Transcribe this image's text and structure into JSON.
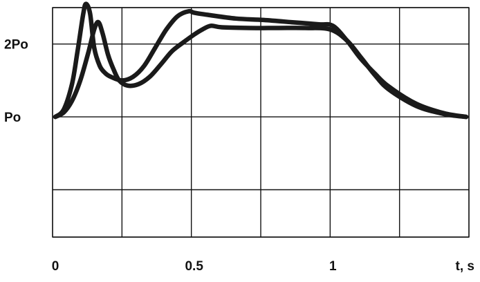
{
  "chart_data": {
    "type": "line",
    "title": "",
    "xlabel": "t, s",
    "ylabel": "",
    "xlim": [
      -0.01,
      1.49
    ],
    "ylim": [
      -0.65,
      2.5
    ],
    "grid": true,
    "x_ticks": [
      {
        "value": 0,
        "label": "0"
      },
      {
        "value": 0.5,
        "label": "0.5"
      },
      {
        "value": 1,
        "label": "1"
      }
    ],
    "y_ticks": [
      {
        "value": 1,
        "label": "Po"
      },
      {
        "value": 2,
        "label": "2Po"
      }
    ],
    "grid_x": [
      -0.01,
      0.24,
      0.49,
      0.74,
      0.99,
      1.24,
      1.49
    ],
    "grid_y": [
      -0.65,
      0.0,
      1.0,
      2.0,
      2.5
    ],
    "series": [
      {
        "color": "#1a1a1a",
        "x": [
          0.0,
          0.03,
          0.06,
          0.08,
          0.1,
          0.11,
          0.125,
          0.14,
          0.16,
          0.18,
          0.2,
          0.24,
          0.28,
          0.32,
          0.36,
          0.4,
          0.44,
          0.48,
          0.5,
          0.55,
          0.65,
          0.75,
          0.85,
          0.95,
          1.0,
          1.05,
          1.1,
          1.15,
          1.2,
          1.3,
          1.4,
          1.48
        ],
        "y": [
          1.0,
          1.1,
          1.45,
          1.9,
          2.4,
          2.55,
          2.42,
          1.95,
          1.7,
          1.6,
          1.55,
          1.5,
          1.55,
          1.7,
          1.95,
          2.2,
          2.38,
          2.45,
          2.43,
          2.4,
          2.35,
          2.33,
          2.3,
          2.27,
          2.25,
          2.05,
          1.8,
          1.6,
          1.42,
          1.18,
          1.05,
          1.0
        ]
      },
      {
        "color": "#1a1a1a",
        "x": [
          0.0,
          0.03,
          0.06,
          0.09,
          0.12,
          0.14,
          0.155,
          0.17,
          0.19,
          0.21,
          0.23,
          0.26,
          0.3,
          0.34,
          0.38,
          0.42,
          0.46,
          0.5,
          0.53,
          0.56,
          0.6,
          0.7,
          0.8,
          0.9,
          0.99,
          1.05,
          1.1,
          1.15,
          1.2,
          1.3,
          1.4,
          1.48
        ],
        "y": [
          1.0,
          1.06,
          1.22,
          1.5,
          1.9,
          2.2,
          2.3,
          2.15,
          1.85,
          1.65,
          1.5,
          1.43,
          1.45,
          1.55,
          1.72,
          1.9,
          2.02,
          2.13,
          2.2,
          2.25,
          2.23,
          2.22,
          2.22,
          2.22,
          2.2,
          2.05,
          1.82,
          1.58,
          1.38,
          1.15,
          1.04,
          1.0
        ]
      }
    ]
  }
}
